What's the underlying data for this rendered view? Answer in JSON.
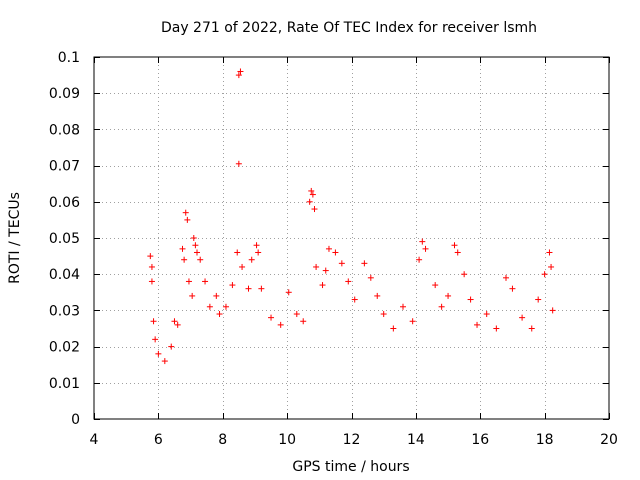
{
  "chart_data": {
    "type": "scatter",
    "title": "Day 271 of 2022, Rate Of TEC Index for receiver lsmh",
    "xlabel": "GPS time / hours",
    "ylabel": "ROTI / TECUs",
    "xlim": [
      4,
      20
    ],
    "ylim": [
      0,
      0.1
    ],
    "xticks": [
      "4",
      "6",
      "8",
      "10",
      "12",
      "14",
      "16",
      "18",
      "20"
    ],
    "yticks": [
      "0",
      "0.01",
      "0.02",
      "0.03",
      "0.04",
      "0.05",
      "0.06",
      "0.07",
      "0.08",
      "0.09",
      "0.1"
    ],
    "grid": true,
    "marker": "+",
    "color": "#ff0000",
    "series": [
      {
        "name": "ROTI",
        "points": [
          [
            5.75,
            0.045
          ],
          [
            5.8,
            0.042
          ],
          [
            5.8,
            0.038
          ],
          [
            5.85,
            0.027
          ],
          [
            5.9,
            0.022
          ],
          [
            6.0,
            0.018
          ],
          [
            6.2,
            0.016
          ],
          [
            6.4,
            0.02
          ],
          [
            6.5,
            0.027
          ],
          [
            6.6,
            0.026
          ],
          [
            6.75,
            0.047
          ],
          [
            6.8,
            0.044
          ],
          [
            6.85,
            0.057
          ],
          [
            6.9,
            0.055
          ],
          [
            6.95,
            0.038
          ],
          [
            7.05,
            0.034
          ],
          [
            7.1,
            0.05
          ],
          [
            7.15,
            0.048
          ],
          [
            7.2,
            0.046
          ],
          [
            7.3,
            0.044
          ],
          [
            7.45,
            0.038
          ],
          [
            7.6,
            0.031
          ],
          [
            7.8,
            0.034
          ],
          [
            7.9,
            0.029
          ],
          [
            8.1,
            0.031
          ],
          [
            8.3,
            0.037
          ],
          [
            8.45,
            0.046
          ],
          [
            8.5,
            0.095
          ],
          [
            8.55,
            0.096
          ],
          [
            8.5,
            0.0705
          ],
          [
            8.6,
            0.042
          ],
          [
            8.8,
            0.036
          ],
          [
            8.9,
            0.044
          ],
          [
            9.05,
            0.048
          ],
          [
            9.1,
            0.046
          ],
          [
            9.2,
            0.036
          ],
          [
            9.5,
            0.028
          ],
          [
            9.8,
            0.026
          ],
          [
            10.05,
            0.035
          ],
          [
            10.3,
            0.029
          ],
          [
            10.5,
            0.027
          ],
          [
            10.7,
            0.06
          ],
          [
            10.75,
            0.063
          ],
          [
            10.8,
            0.062
          ],
          [
            10.85,
            0.058
          ],
          [
            10.9,
            0.042
          ],
          [
            11.1,
            0.037
          ],
          [
            11.2,
            0.041
          ],
          [
            11.3,
            0.047
          ],
          [
            11.5,
            0.046
          ],
          [
            11.7,
            0.043
          ],
          [
            11.9,
            0.038
          ],
          [
            12.1,
            0.033
          ],
          [
            12.4,
            0.043
          ],
          [
            12.6,
            0.039
          ],
          [
            12.8,
            0.034
          ],
          [
            13.0,
            0.029
          ],
          [
            13.3,
            0.025
          ],
          [
            13.6,
            0.031
          ],
          [
            13.9,
            0.027
          ],
          [
            14.1,
            0.044
          ],
          [
            14.2,
            0.049
          ],
          [
            14.3,
            0.047
          ],
          [
            14.6,
            0.037
          ],
          [
            14.8,
            0.031
          ],
          [
            15.0,
            0.034
          ],
          [
            15.2,
            0.048
          ],
          [
            15.3,
            0.046
          ],
          [
            15.5,
            0.04
          ],
          [
            15.7,
            0.033
          ],
          [
            15.9,
            0.026
          ],
          [
            16.2,
            0.029
          ],
          [
            16.5,
            0.025
          ],
          [
            16.8,
            0.039
          ],
          [
            17.0,
            0.036
          ],
          [
            17.3,
            0.028
          ],
          [
            17.6,
            0.025
          ],
          [
            17.8,
            0.033
          ],
          [
            18.0,
            0.04
          ],
          [
            18.15,
            0.046
          ],
          [
            18.2,
            0.042
          ],
          [
            18.25,
            0.03
          ]
        ]
      }
    ]
  }
}
